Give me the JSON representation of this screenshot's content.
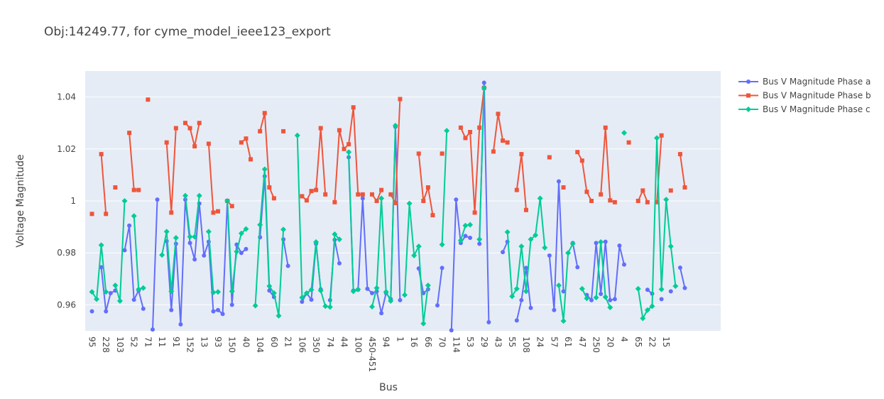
{
  "chart_data": {
    "type": "line",
    "title": "Obj:14249.77, for cyme_model_ieee123_export",
    "xlabel": "Bus",
    "ylabel": "Voltage Magnitude",
    "ylim": [
      0.95,
      1.05
    ],
    "yticks": [
      0.96,
      0.98,
      1,
      1.02,
      1.04
    ],
    "ytick_labels": [
      "0.96",
      "0.98",
      "1",
      "1.02",
      "1.04"
    ],
    "xtick_labels": [
      "95",
      "228",
      "103",
      "52",
      "71",
      "11",
      "91",
      "152",
      "13",
      "93",
      "150",
      "40",
      "104",
      "60",
      "21",
      "106",
      "350",
      "74",
      "44",
      "100",
      "450-451",
      "94",
      "1",
      "16",
      "66",
      "70",
      "114",
      "53",
      "29",
      "43",
      "55",
      "108",
      "24",
      "57",
      "61",
      "47",
      "250",
      "20",
      "4",
      "65",
      "22",
      "15"
    ],
    "grid": true,
    "legend_position": "top-right",
    "colors": {
      "a": "#636efa",
      "b": "#ef553b",
      "c": "#00cc96",
      "plot_bg": "#e5ecf6"
    },
    "series": [
      {
        "name": "Bus V Magnitude Phase a",
        "marker": "circle",
        "values": [
          0.9575,
          null,
          0.9745,
          0.9575,
          0.9645,
          0.9655,
          null,
          0.981,
          0.9905,
          0.962,
          0.9655,
          0.9585,
          null,
          0.9505,
          1.0005,
          null,
          0.9845,
          0.958,
          0.9835,
          0.9525,
          1.0005,
          0.9838,
          0.9775,
          0.999,
          0.979,
          0.9843,
          0.9575,
          0.958,
          0.9565,
          1.0,
          0.96,
          0.9832,
          0.98,
          0.9815,
          null,
          null,
          0.986,
          1.0095,
          0.9655,
          0.963,
          null,
          0.9852,
          0.975,
          null,
          null,
          0.9612,
          0.9645,
          0.962,
          0.9835,
          0.966,
          null,
          0.9618,
          0.985,
          0.976,
          null,
          1.0168,
          0.9655,
          0.9658,
          1.001,
          0.9662,
          0.9645,
          0.9652,
          0.9568,
          0.9645,
          0.9622,
          1.0285,
          0.9618,
          null,
          null,
          null,
          0.974,
          0.9645,
          0.966,
          null,
          0.9598,
          0.9742,
          null,
          0.9502,
          1.0005,
          0.9838,
          0.9865,
          0.9858,
          null,
          0.9835,
          1.0455,
          0.9533,
          null,
          null,
          0.9803,
          0.9843,
          null,
          0.954,
          0.9618,
          0.9742,
          0.9588,
          null,
          null,
          null,
          0.979,
          0.958,
          1.0075,
          0.9652,
          null,
          0.9838,
          0.9745,
          null,
          0.9638,
          0.9618,
          0.9838,
          0.9642,
          0.9843,
          0.9618,
          0.9622,
          0.9828,
          0.9755,
          null,
          null,
          null,
          null,
          0.9658,
          0.9643,
          null,
          0.9622,
          null,
          0.9652,
          null,
          0.9743,
          0.9665
        ]
      },
      {
        "name": "Bus V Magnitude Phase b",
        "marker": "square",
        "values": [
          0.995,
          null,
          1.018,
          0.995,
          null,
          1.0052,
          null,
          null,
          1.0262,
          1.0042,
          1.0042,
          null,
          1.039,
          null,
          null,
          null,
          1.0225,
          0.9955,
          1.028,
          null,
          1.03,
          1.028,
          1.021,
          1.03,
          null,
          1.022,
          0.9955,
          0.996,
          null,
          1.0,
          0.998,
          null,
          1.0225,
          1.024,
          1.016,
          null,
          1.0268,
          1.0338,
          1.0052,
          1.001,
          null,
          1.0268,
          null,
          null,
          null,
          1.0018,
          1.0002,
          1.0038,
          1.0042,
          1.028,
          1.0025,
          null,
          0.9995,
          1.0272,
          1.02,
          1.0218,
          1.036,
          1.0025,
          1.0025,
          null,
          1.0025,
          1.0,
          1.0042,
          null,
          1.0025,
          0.9992,
          1.0392,
          null,
          null,
          null,
          1.0182,
          1.0,
          1.0052,
          0.9945,
          null,
          1.0182,
          null,
          null,
          null,
          1.0282,
          1.0242,
          1.0265,
          0.9955,
          1.0282,
          1.0435,
          null,
          1.019,
          1.0335,
          1.0232,
          1.0225,
          null,
          1.0042,
          1.018,
          0.9965,
          null,
          null,
          null,
          null,
          1.0168,
          null,
          null,
          1.0052,
          null,
          null,
          1.0188,
          1.0155,
          1.0035,
          1.0,
          null,
          1.0025,
          1.0282,
          1.0002,
          0.9995,
          null,
          null,
          1.0225,
          null,
          1.0,
          1.004,
          0.9995,
          null,
          0.9995,
          1.0252,
          null,
          1.004,
          null,
          1.018,
          1.0052
        ]
      },
      {
        "name": "Bus V Magnitude Phase c",
        "marker": "diamond",
        "values": [
          0.965,
          0.9622,
          0.983,
          0.965,
          null,
          0.9675,
          0.9615,
          1.0,
          null,
          0.9942,
          0.966,
          0.9665,
          null,
          null,
          null,
          0.9792,
          0.9882,
          0.9652,
          0.9858,
          null,
          1.002,
          0.9862,
          0.9862,
          1.002,
          null,
          0.9882,
          0.9648,
          0.965,
          null,
          1.0,
          0.9652,
          0.9805,
          0.9875,
          0.9892,
          null,
          0.9597,
          0.9908,
          1.0122,
          0.9672,
          0.9645,
          0.9558,
          0.989,
          null,
          null,
          1.0252,
          0.9628,
          0.9645,
          0.9658,
          0.9842,
          0.9655,
          0.9595,
          0.9592,
          0.9872,
          0.9852,
          null,
          1.0188,
          0.9652,
          0.966,
          null,
          null,
          0.9593,
          0.9665,
          1.001,
          0.965,
          0.9615,
          1.029,
          null,
          0.9638,
          0.999,
          0.979,
          0.9825,
          0.9528,
          0.9675,
          null,
          null,
          0.9832,
          1.027,
          null,
          null,
          0.9848,
          0.9905,
          0.9908,
          null,
          0.9852,
          1.0435,
          null,
          null,
          null,
          null,
          0.988,
          0.9633,
          0.9662,
          0.9825,
          0.9652,
          0.9852,
          0.9868,
          1.001,
          0.982,
          null,
          null,
          0.9675,
          0.9538,
          0.98,
          0.9835,
          null,
          0.9662,
          0.9625,
          null,
          0.9628,
          0.9842,
          0.963,
          0.959,
          null,
          null,
          1.0262,
          null,
          null,
          0.9662,
          0.9548,
          0.958,
          0.9595,
          1.0242,
          0.966,
          1.0005,
          0.9825,
          0.9672
        ]
      }
    ]
  }
}
